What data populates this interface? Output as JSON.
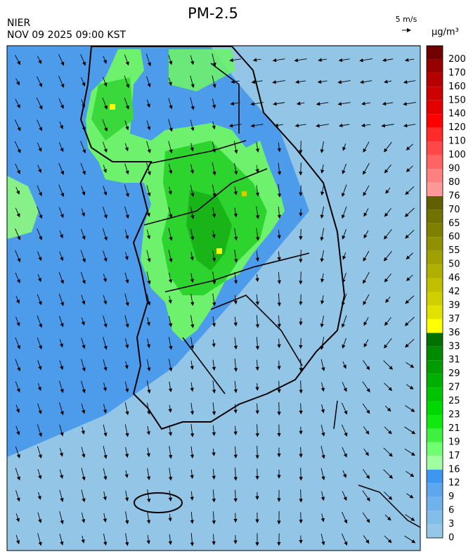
{
  "header": {
    "title": "PM-2.5",
    "source": "NIER",
    "datetime": "NOV 09 2025 09:00 KST",
    "wind_scale": "5 m/s"
  },
  "colorbar": {
    "unit": "μg/m³",
    "levels": [
      0,
      3,
      6,
      9,
      12,
      16,
      17,
      19,
      21,
      23,
      25,
      27,
      29,
      31,
      33,
      36,
      37,
      39,
      42,
      46,
      50,
      55,
      60,
      65,
      70,
      76,
      80,
      90,
      100,
      110,
      120,
      140,
      150,
      160,
      170,
      200
    ],
    "colors": [
      "#94c8e6",
      "#84bde9",
      "#70b2ec",
      "#5ea6ee",
      "#3f96f0",
      "#a0ffa0",
      "#70ff70",
      "#40f040",
      "#10e810",
      "#00d800",
      "#00c400",
      "#00b000",
      "#009c00",
      "#008a00",
      "#007000",
      "#ffff00",
      "#e2e200",
      "#d0d000",
      "#c0c000",
      "#b0b000",
      "#a0a000",
      "#909000",
      "#808000",
      "#727200",
      "#606000",
      "#ff9898",
      "#ff8080",
      "#ff6464",
      "#ff4848",
      "#ff2a2a",
      "#ff0000",
      "#e40000",
      "#cc0000",
      "#b40000",
      "#980000",
      "#700000"
    ]
  }
}
